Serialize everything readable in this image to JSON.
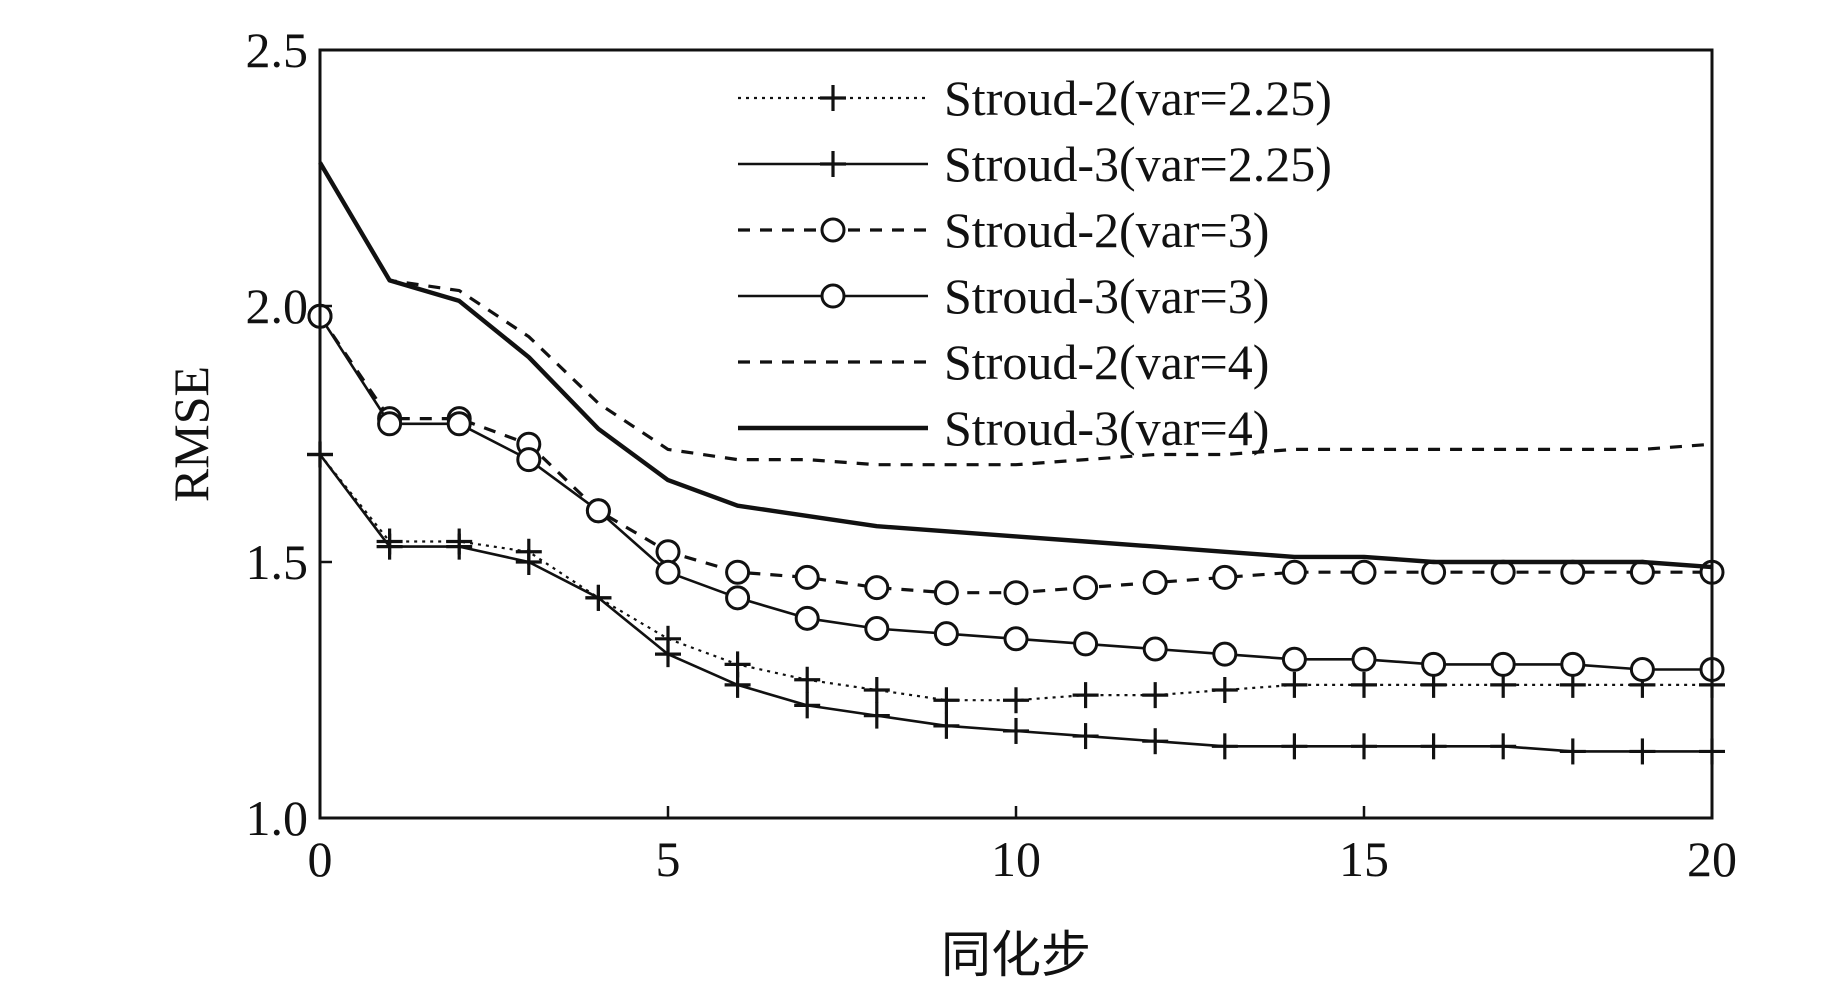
{
  "chart_data": {
    "type": "line",
    "xlabel": "同化步",
    "ylabel": "RMSE",
    "xlim": [
      0,
      20
    ],
    "ylim": [
      1.0,
      2.5
    ],
    "x_ticks": [
      "0",
      "5",
      "10",
      "15",
      "20"
    ],
    "y_ticks": [
      "1.0",
      "1.5",
      "2.0",
      "2.5"
    ],
    "grid": false,
    "legend_position": "top-right",
    "x": [
      0,
      1,
      2,
      3,
      4,
      5,
      6,
      7,
      8,
      9,
      10,
      11,
      12,
      13,
      14,
      15,
      16,
      17,
      18,
      19,
      20
    ],
    "series": [
      {
        "name": "Stroud-2(var=2.25)",
        "line": "dotted",
        "marker": "plus",
        "color": "#111111",
        "values": [
          1.71,
          1.54,
          1.54,
          1.52,
          1.43,
          1.35,
          1.3,
          1.27,
          1.25,
          1.23,
          1.23,
          1.24,
          1.24,
          1.25,
          1.26,
          1.26,
          1.26,
          1.26,
          1.26,
          1.26,
          1.26
        ]
      },
      {
        "name": "Stroud-3(var=2.25)",
        "line": "solid",
        "marker": "plus",
        "color": "#111111",
        "values": [
          1.71,
          1.53,
          1.53,
          1.5,
          1.43,
          1.32,
          1.26,
          1.22,
          1.2,
          1.18,
          1.17,
          1.16,
          1.15,
          1.14,
          1.14,
          1.14,
          1.14,
          1.14,
          1.13,
          1.13,
          1.13
        ]
      },
      {
        "name": "Stroud-2(var=3)",
        "line": "dashed",
        "marker": "circle",
        "color": "#111111",
        "values": [
          1.98,
          1.78,
          1.78,
          1.73,
          1.6,
          1.52,
          1.48,
          1.47,
          1.45,
          1.44,
          1.44,
          1.45,
          1.46,
          1.47,
          1.48,
          1.48,
          1.48,
          1.48,
          1.48,
          1.48,
          1.48
        ]
      },
      {
        "name": "Stroud-3(var=3)",
        "line": "solid",
        "marker": "circle",
        "color": "#111111",
        "values": [
          1.98,
          1.77,
          1.77,
          1.7,
          1.6,
          1.48,
          1.43,
          1.39,
          1.37,
          1.36,
          1.35,
          1.34,
          1.33,
          1.32,
          1.31,
          1.31,
          1.3,
          1.3,
          1.3,
          1.29,
          1.29
        ]
      },
      {
        "name": "Stroud-2(var=4)",
        "line": "dashed",
        "marker": "none",
        "color": "#111111",
        "values": [
          2.28,
          2.05,
          2.03,
          1.94,
          1.81,
          1.72,
          1.7,
          1.7,
          1.69,
          1.69,
          1.69,
          1.7,
          1.71,
          1.71,
          1.72,
          1.72,
          1.72,
          1.72,
          1.72,
          1.72,
          1.73
        ]
      },
      {
        "name": "Stroud-3(var=4)",
        "line": "bold-solid",
        "marker": "none",
        "color": "#111111",
        "values": [
          2.28,
          2.05,
          2.01,
          1.9,
          1.76,
          1.66,
          1.61,
          1.59,
          1.57,
          1.56,
          1.55,
          1.54,
          1.53,
          1.52,
          1.51,
          1.51,
          1.5,
          1.5,
          1.5,
          1.5,
          1.49
        ]
      }
    ]
  }
}
